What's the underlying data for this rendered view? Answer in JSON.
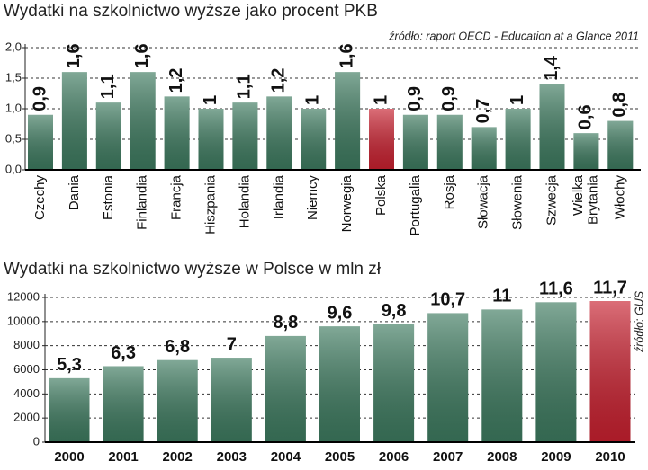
{
  "chart_data": [
    {
      "type": "bar",
      "title": "Wydatki na szkolnictwo wyższe jako procent PKB",
      "source": "źródło: raport OECD - Education at a Glance 2011",
      "categories": [
        "Czechy",
        "Dania",
        "Estonia",
        "Finlandia",
        "Francja",
        "Hiszpania",
        "Holandia",
        "Irlandia",
        "Niemcy",
        "Norwegia",
        "Polska",
        "Portugalia",
        "Rosja",
        "Słowacja",
        "Słowenia",
        "Szwecja",
        "Wielka Brytania",
        "Włochy"
      ],
      "values": [
        0.9,
        1.6,
        1.1,
        1.6,
        1.2,
        1,
        1.1,
        1.2,
        1,
        1.6,
        1,
        0.9,
        0.9,
        0.7,
        1,
        1.4,
        0.6,
        0.8
      ],
      "value_labels": [
        "0,9",
        "1,6",
        "1,1",
        "1,6",
        "1,2",
        "1",
        "1,1",
        "1,2",
        "1",
        "1,6",
        "1",
        "0,9",
        "0,9",
        "0,7",
        "1",
        "1,4",
        "0,6",
        "0,8"
      ],
      "colors": [
        "#3d7a5f",
        "#3d7a5f",
        "#3d7a5f",
        "#3d7a5f",
        "#3d7a5f",
        "#3d7a5f",
        "#3d7a5f",
        "#3d7a5f",
        "#3d7a5f",
        "#3d7a5f",
        "#c8202f",
        "#3d7a5f",
        "#3d7a5f",
        "#3d7a5f",
        "#3d7a5f",
        "#3d7a5f",
        "#3d7a5f",
        "#3d7a5f"
      ],
      "ylim": [
        0,
        2
      ],
      "yticks": [
        {
          "value": 0,
          "label": "0,0"
        },
        {
          "value": 0.5,
          "label": "0,5"
        },
        {
          "value": 1,
          "label": "1,0"
        },
        {
          "value": 1.5,
          "label": "1,5"
        },
        {
          "value": 2,
          "label": "2,0"
        }
      ],
      "grid": true
    },
    {
      "type": "bar",
      "title": "Wydatki na szkolnictwo wyższe w Polsce w mln zł",
      "source": "źródło: GUS",
      "categories": [
        "2000",
        "2001",
        "2002",
        "2003",
        "2004",
        "2005",
        "2006",
        "2007",
        "2008",
        "2009",
        "2010"
      ],
      "values": [
        5300,
        6300,
        6800,
        7000,
        8800,
        9600,
        9800,
        10700,
        11000,
        11600,
        11700
      ],
      "value_labels": [
        "5,3",
        "6,3",
        "6,8",
        "7",
        "8,8",
        "9,6",
        "9,8",
        "10,7",
        "11",
        "11,6",
        "11,7"
      ],
      "colors": [
        "#3d7a5f",
        "#3d7a5f",
        "#3d7a5f",
        "#3d7a5f",
        "#3d7a5f",
        "#3d7a5f",
        "#3d7a5f",
        "#3d7a5f",
        "#3d7a5f",
        "#3d7a5f",
        "#c8202f"
      ],
      "ylim": [
        0,
        12000
      ],
      "yticks": [
        0,
        2000,
        4000,
        6000,
        8000,
        10000,
        12000
      ],
      "grid": true
    }
  ]
}
